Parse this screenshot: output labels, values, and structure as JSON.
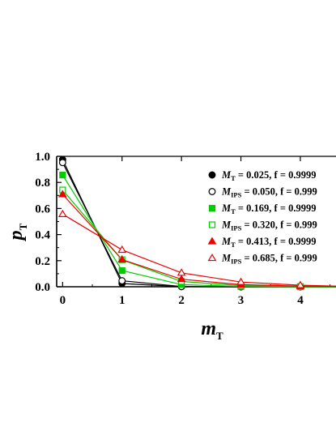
{
  "chart_data": {
    "type": "line",
    "title": "",
    "xlabel": {
      "main": "m",
      "sub": "T"
    },
    "ylabel": {
      "main": "p",
      "sub": "T"
    },
    "xlim": [
      -0.1,
      4.6
    ],
    "ylim": [
      0,
      1.0
    ],
    "xticks": [
      0,
      1,
      2,
      3,
      4
    ],
    "xtick_labels": [
      "0",
      "1",
      "2",
      "3",
      "4"
    ],
    "yticks": [
      0.0,
      0.2,
      0.4,
      0.6,
      0.8,
      1.0
    ],
    "ytick_labels": [
      "0.0",
      "0.2",
      "0.4",
      "0.6",
      "0.8",
      "1.0"
    ],
    "grid": false,
    "legend_position": "upper-right",
    "series": [
      {
        "label_main": "M",
        "label_sub": "T",
        "label_rest": " = 0.025, f = 0.9999",
        "color": "#000000",
        "marker": "circle",
        "filled": true,
        "x": [
          0,
          1,
          2,
          3,
          4,
          4.6
        ],
        "y": [
          0.975,
          0.025,
          0.0006,
          0.0,
          0.0,
          0.0
        ]
      },
      {
        "label_main": "M",
        "label_sub": "IPS",
        "label_rest": " = 0.050, f = 0.999",
        "color": "#000000",
        "marker": "circle",
        "filled": false,
        "x": [
          0,
          1,
          2,
          3,
          4,
          4.6
        ],
        "y": [
          0.952,
          0.046,
          0.002,
          0.0,
          0.0,
          0.0
        ]
      },
      {
        "label_main": "M",
        "label_sub": "T",
        "label_rest": " = 0.169, f = 0.9999",
        "color": "#00cc00",
        "marker": "square",
        "filled": true,
        "x": [
          0,
          1,
          2,
          3,
          4,
          4.6
        ],
        "y": [
          0.857,
          0.124,
          0.017,
          0.002,
          0.0,
          0.0
        ]
      },
      {
        "label_main": "M",
        "label_sub": "IPS",
        "label_rest": " = 0.320, f = 0.999",
        "color": "#00cc00",
        "marker": "square",
        "filled": false,
        "x": [
          0,
          1,
          2,
          3,
          4,
          4.6
        ],
        "y": [
          0.742,
          0.207,
          0.041,
          0.009,
          0.001,
          0.0
        ]
      },
      {
        "label_main": "M",
        "label_sub": "T",
        "label_rest": " = 0.413, f = 0.9999",
        "color": "#ee0000",
        "marker": "triangle",
        "filled": true,
        "x": [
          0,
          1,
          2,
          3,
          4,
          4.6
        ],
        "y": [
          0.709,
          0.209,
          0.058,
          0.016,
          0.005,
          0.003
        ]
      },
      {
        "label_main": "M",
        "label_sub": "IPS",
        "label_rest": " = 0.685, f = 0.999",
        "color": "#ee0000",
        "marker": "triangle",
        "filled": false,
        "x": [
          0,
          1,
          2,
          3,
          4,
          4.6
        ],
        "y": [
          0.557,
          0.283,
          0.107,
          0.036,
          0.012,
          0.005
        ]
      }
    ]
  }
}
